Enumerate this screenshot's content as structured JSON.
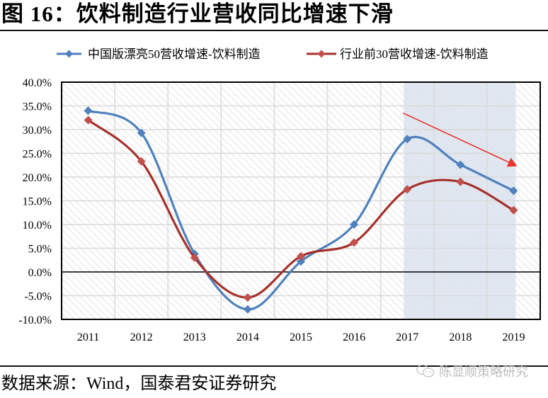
{
  "header": {
    "title": "图 16：饮料制造行业营收同比增速下滑"
  },
  "footer": {
    "source": "数据来源：Wind，国泰君安证券研究",
    "watermark": "陈显顺策略研究",
    "watermark_icon": "wechat-icon"
  },
  "colors": {
    "series_blue": "#4F81BD",
    "series_red": "#A5302A",
    "marker_red": "#C0504D",
    "highlight_band": "#DCE3EE",
    "arrow": "#E8342A",
    "grid": "#D9D9D9",
    "hatch": "#EDEDED"
  },
  "chart_data": {
    "type": "line",
    "title": "饮料制造行业营收同比增速下滑",
    "xlabel": "",
    "ylabel": "",
    "categories": [
      "2011",
      "2012",
      "2013",
      "2014",
      "2015",
      "2016",
      "2017",
      "2018",
      "2019"
    ],
    "series": [
      {
        "name": "中国版漂亮50营收增速-饮料制造",
        "color": "#4F81BD",
        "marker": "diamond",
        "values": [
          34.0,
          29.3,
          3.8,
          -7.9,
          2.2,
          10.0,
          28.0,
          22.6,
          17.1
        ]
      },
      {
        "name": "行业前30营收增速-饮料制造",
        "color": "#A5302A",
        "marker": "diamond",
        "values": [
          32.0,
          23.3,
          3.0,
          -5.4,
          3.3,
          6.2,
          17.4,
          19.0,
          13.0
        ]
      }
    ],
    "ylim": [
      -10,
      40
    ],
    "yticks": [
      40,
      35,
      30,
      25,
      20,
      15,
      10,
      5,
      0,
      -5,
      -10
    ],
    "ytick_labels": [
      "40.0%",
      "35.0%",
      "30.0%",
      "25.0%",
      "20.0%",
      "15.0%",
      "10.0%",
      "5.0%",
      "0.0%",
      "-5.0%",
      "-10.0%"
    ],
    "grid": true,
    "legend_position": "top",
    "smooth": true,
    "annotations": [
      {
        "type": "shaded_band",
        "from_category": "2017",
        "to_category": "2019",
        "description": "highlighted 2017-2019 region"
      },
      {
        "type": "arrow",
        "description": "downward trend arrow",
        "from": [
          "2017",
          33.5
        ],
        "to": [
          "2019",
          22.3
        ]
      }
    ]
  }
}
